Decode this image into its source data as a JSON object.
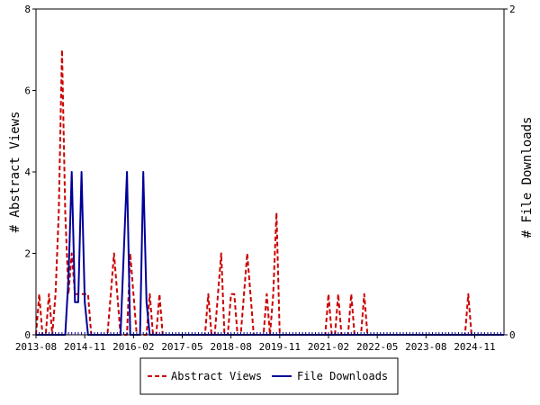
{
  "chart_data": {
    "type": "line",
    "title": "",
    "xlabel": "",
    "ylabel_left": "# Abstract Views",
    "ylabel_right": "# File Downloads",
    "ylim_left": [
      0,
      8
    ],
    "ylim_right": [
      0,
      2
    ],
    "left_ticks": [
      "0",
      "2",
      "4",
      "6",
      "8"
    ],
    "right_ticks": [
      "0",
      "2"
    ],
    "x_tick_labels": [
      "2013-08",
      "2014-11",
      "2016-02",
      "2017-05",
      "2018-08",
      "2019-11",
      "2021-02",
      "2022-05",
      "2023-08",
      "2024-11"
    ],
    "grid": false,
    "legend_position": "bottom",
    "x_start": "2013-08",
    "x_end": "2025-08",
    "series": [
      {
        "name": "Abstract Views",
        "axis": "left",
        "color": "#cc0000",
        "style": "dashed",
        "points": [
          [
            "2013-08",
            0
          ],
          [
            "2013-09",
            1
          ],
          [
            "2013-10",
            0
          ],
          [
            "2013-11",
            0
          ],
          [
            "2013-12",
            1
          ],
          [
            "2014-01",
            0
          ],
          [
            "2014-02",
            1
          ],
          [
            "2014-03",
            3
          ],
          [
            "2014-04",
            7
          ],
          [
            "2014-05",
            3
          ],
          [
            "2014-06",
            1
          ],
          [
            "2014-07",
            2
          ],
          [
            "2014-08",
            1
          ],
          [
            "2014-09",
            1
          ],
          [
            "2014-10",
            1
          ],
          [
            "2014-11",
            1
          ],
          [
            "2014-12",
            1
          ],
          [
            "2015-01",
            0
          ],
          [
            "2015-02",
            0
          ],
          [
            "2015-03",
            0
          ],
          [
            "2015-04",
            0
          ],
          [
            "2015-05",
            0
          ],
          [
            "2015-06",
            0
          ],
          [
            "2015-07",
            1
          ],
          [
            "2015-08",
            2
          ],
          [
            "2015-09",
            1
          ],
          [
            "2015-10",
            0
          ],
          [
            "2015-11",
            0
          ],
          [
            "2015-12",
            0
          ],
          [
            "2016-01",
            2
          ],
          [
            "2016-02",
            1
          ],
          [
            "2016-03",
            0
          ],
          [
            "2016-04",
            0
          ],
          [
            "2016-05",
            0
          ],
          [
            "2016-06",
            0
          ],
          [
            "2016-07",
            1
          ],
          [
            "2016-08",
            0
          ],
          [
            "2016-09",
            0
          ],
          [
            "2016-10",
            1
          ],
          [
            "2016-11",
            0
          ],
          [
            "2016-12",
            0
          ],
          [
            "2017-12",
            0
          ],
          [
            "2018-01",
            1
          ],
          [
            "2018-02",
            0
          ],
          [
            "2018-03",
            0
          ],
          [
            "2018-04",
            1
          ],
          [
            "2018-05",
            2
          ],
          [
            "2018-06",
            0
          ],
          [
            "2018-07",
            0
          ],
          [
            "2018-08",
            1
          ],
          [
            "2018-09",
            1
          ],
          [
            "2018-10",
            0
          ],
          [
            "2018-11",
            0
          ],
          [
            "2018-12",
            1
          ],
          [
            "2019-01",
            2
          ],
          [
            "2019-02",
            1
          ],
          [
            "2019-03",
            0
          ],
          [
            "2019-04",
            0
          ],
          [
            "2019-05",
            0
          ],
          [
            "2019-06",
            0
          ],
          [
            "2019-07",
            1
          ],
          [
            "2019-08",
            0
          ],
          [
            "2019-09",
            1
          ],
          [
            "2019-10",
            3
          ],
          [
            "2019-11",
            0
          ],
          [
            "2021-01",
            0
          ],
          [
            "2021-02",
            1
          ],
          [
            "2021-03",
            0
          ],
          [
            "2021-04",
            0
          ],
          [
            "2021-05",
            1
          ],
          [
            "2021-06",
            0
          ],
          [
            "2021-07",
            0
          ],
          [
            "2021-08",
            0
          ],
          [
            "2021-09",
            1
          ],
          [
            "2021-10",
            0
          ],
          [
            "2021-11",
            0
          ],
          [
            "2021-12",
            0
          ],
          [
            "2022-01",
            1
          ],
          [
            "2022-02",
            0
          ],
          [
            "2024-08",
            0
          ],
          [
            "2024-09",
            1
          ],
          [
            "2024-10",
            0
          ],
          [
            "2025-08",
            0
          ]
        ]
      },
      {
        "name": "File Downloads",
        "axis": "right",
        "color": "#000099",
        "style": "solid",
        "points": [
          [
            "2013-08",
            0
          ],
          [
            "2014-05",
            0
          ],
          [
            "2014-06",
            0.35
          ],
          [
            "2014-07",
            1
          ],
          [
            "2014-08",
            0.2
          ],
          [
            "2014-09",
            0.2
          ],
          [
            "2014-10",
            1
          ],
          [
            "2014-11",
            0.2
          ],
          [
            "2014-12",
            0
          ],
          [
            "2015-10",
            0
          ],
          [
            "2015-11",
            0.5
          ],
          [
            "2015-12",
            1
          ],
          [
            "2016-01",
            0
          ],
          [
            "2016-02",
            0
          ],
          [
            "2016-03",
            0
          ],
          [
            "2016-04",
            0
          ],
          [
            "2016-05",
            1
          ],
          [
            "2016-06",
            0.2
          ],
          [
            "2016-07",
            0
          ],
          [
            "2025-08",
            0
          ]
        ]
      }
    ]
  }
}
